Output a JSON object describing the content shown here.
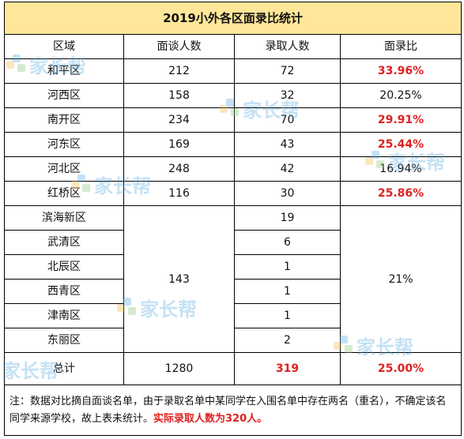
{
  "table": {
    "title": "2019小外各区面录比统计",
    "headers": [
      "区域",
      "面谈人数",
      "录取人数",
      "面录比"
    ],
    "rows": [
      {
        "district": "和平区",
        "interviewed": "212",
        "admitted": "72",
        "ratio": "33.96%"
      },
      {
        "district": "河西区",
        "interviewed": "158",
        "admitted": "32",
        "ratio": "20.25%"
      },
      {
        "district": "南开区",
        "interviewed": "234",
        "admitted": "70",
        "ratio": "29.91%"
      },
      {
        "district": "河东区",
        "interviewed": "169",
        "admitted": "43",
        "ratio": "25.44%"
      },
      {
        "district": "河北区",
        "interviewed": "248",
        "admitted": "42",
        "ratio": "16.94%"
      },
      {
        "district": "红桥区",
        "interviewed": "116",
        "admitted": "30",
        "ratio": "25.86%"
      }
    ],
    "group": {
      "interviewed": "143",
      "ratio": "21%",
      "rows": [
        {
          "district": "滨海新区",
          "admitted": "19"
        },
        {
          "district": "武清区",
          "admitted": "6"
        },
        {
          "district": "北辰区",
          "admitted": "1"
        },
        {
          "district": "西青区",
          "admitted": "1"
        },
        {
          "district": "津南区",
          "admitted": "1"
        },
        {
          "district": "东丽区",
          "admitted": "2"
        }
      ]
    },
    "total": {
      "label": "总计",
      "interviewed": "1280",
      "admitted": "319",
      "ratio": "25.00%"
    },
    "note": {
      "text": "注：数据对比摘自面谈名单，由于录取名单中某同学在入围名单中存在两名（重名），不确定该名同学来源学校，故上表未统计。",
      "highlight": "实际录取人数为320人。"
    }
  },
  "watermark": {
    "text": "家长帮"
  },
  "colors": {
    "header_bg": "#ffe699",
    "highlight": "#e02020"
  }
}
